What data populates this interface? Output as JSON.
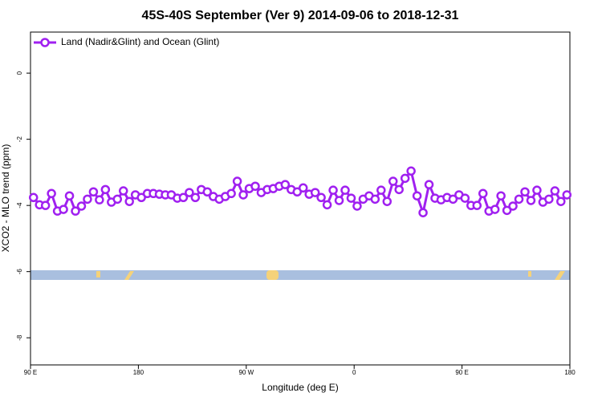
{
  "chart_data": {
    "type": "line",
    "title": "45S-40S September (Ver 9)   2014-09-06 to 2018-12-31",
    "xlabel": "Longitude (deg E)",
    "ylabel": "XCO2 - MLO trend (ppm)",
    "legend": "top-left",
    "x": [
      92.5,
      97.5,
      102.5,
      107.5,
      112.5,
      117.5,
      122.5,
      127.5,
      132.5,
      137.5,
      142.5,
      147.5,
      152.5,
      157.5,
      162.5,
      167.5,
      172.5,
      177.5,
      182.5,
      187.5,
      192.5,
      197.5,
      202.5,
      207.5,
      212.5,
      217.5,
      222.5,
      227.5,
      232.5,
      237.5,
      242.5,
      247.5,
      252.5,
      257.5,
      262.5,
      267.5,
      272.5,
      277.5,
      282.5,
      287.5,
      292.5,
      297.5,
      302.5,
      307.5,
      312.5,
      317.5,
      322.5,
      327.5,
      332.5,
      337.5,
      342.5,
      347.5,
      352.5,
      357.5,
      362.5,
      367.5,
      372.5,
      377.5,
      382.5,
      387.5,
      392.5,
      397.5,
      402.5,
      407.5,
      412.5,
      417.5,
      422.5,
      427.5,
      432.5,
      437.5,
      442.5,
      447.5,
      452.5,
      457.5,
      462.5,
      467.5,
      472.5,
      477.5,
      482.5,
      487.5,
      492.5,
      497.5,
      502.5,
      507.5,
      512.5,
      517.5,
      522.5,
      527.5,
      532.5,
      537.5
    ],
    "series": [
      {
        "name": "Land (Nadir&Glint) and Ocean (Glint)",
        "color": "#a020f0",
        "values": [
          -3.76,
          -3.98,
          -4.0,
          -3.64,
          -4.17,
          -4.12,
          -3.71,
          -4.17,
          -4.02,
          -3.81,
          -3.59,
          -3.83,
          -3.52,
          -3.9,
          -3.81,
          -3.56,
          -3.88,
          -3.68,
          -3.76,
          -3.64,
          -3.64,
          -3.66,
          -3.68,
          -3.68,
          -3.78,
          -3.76,
          -3.61,
          -3.76,
          -3.52,
          -3.59,
          -3.73,
          -3.81,
          -3.73,
          -3.64,
          -3.27,
          -3.68,
          -3.49,
          -3.42,
          -3.61,
          -3.52,
          -3.49,
          -3.42,
          -3.37,
          -3.52,
          -3.59,
          -3.47,
          -3.66,
          -3.61,
          -3.76,
          -3.98,
          -3.54,
          -3.85,
          -3.54,
          -3.78,
          -4.02,
          -3.81,
          -3.71,
          -3.81,
          -3.54,
          -3.88,
          -3.27,
          -3.52,
          -3.18,
          -2.96,
          -3.71,
          -4.22,
          -3.37,
          -3.78,
          -3.83,
          -3.76,
          -3.81,
          -3.68,
          -3.78,
          -4.0,
          -4.0,
          -3.64,
          -4.17,
          -4.12,
          -3.71,
          -4.15,
          -4.02,
          -3.81,
          -3.59,
          -3.85,
          -3.54,
          -3.9,
          -3.81,
          -3.56,
          -3.88,
          -3.68
        ]
      }
    ],
    "xlim": [
      90,
      540
    ],
    "xticks": [
      {
        "value": 90,
        "label": "90 E"
      },
      180,
      {
        "value": 270,
        "label": "90 W"
      },
      {
        "value": 360,
        "label": "0"
      },
      {
        "value": 450,
        "label": "90 E"
      },
      {
        "value": 540,
        "label": "180"
      }
    ],
    "ylim": [
      -8.82,
      1.24
    ],
    "yticks": [
      0,
      -2,
      -4,
      -6,
      -8
    ]
  }
}
